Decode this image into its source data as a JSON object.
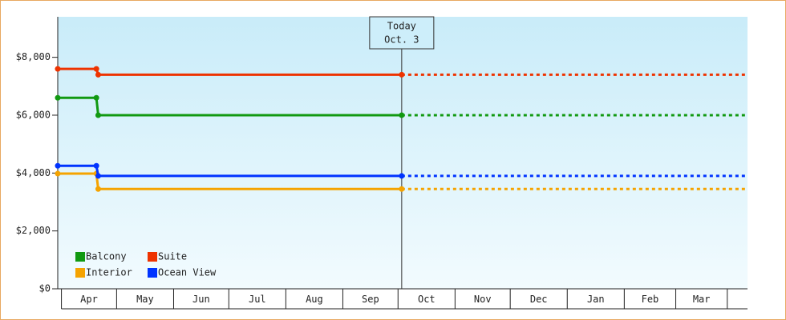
{
  "chart_data": {
    "type": "line",
    "xlim": [
      -2,
      373
    ],
    "xticks": [
      {
        "value": 0,
        "label": "Apr"
      },
      {
        "value": 30,
        "label": "May"
      },
      {
        "value": 61,
        "label": "Jun"
      },
      {
        "value": 91,
        "label": "Jul"
      },
      {
        "value": 122,
        "label": "Aug"
      },
      {
        "value": 153,
        "label": "Sep"
      },
      {
        "value": 183,
        "label": "Oct"
      },
      {
        "value": 214,
        "label": "Nov"
      },
      {
        "value": 244,
        "label": "Dec"
      },
      {
        "value": 275,
        "label": "Jan"
      },
      {
        "value": 306,
        "label": "Feb"
      },
      {
        "value": 334,
        "label": "Mar"
      }
    ],
    "ylim": [
      0,
      9400
    ],
    "yticks": [
      {
        "value": 0,
        "label": "$0"
      },
      {
        "value": 2000,
        "label": "$2,000"
      },
      {
        "value": 4000,
        "label": "$4,000"
      },
      {
        "value": 6000,
        "label": "$6,000"
      },
      {
        "value": 8000,
        "label": "$8,000"
      }
    ],
    "x": [
      -2,
      19,
      20,
      185
    ],
    "series": [
      {
        "name": "Balcony",
        "color": "#119911",
        "values": [
          6600,
          6600,
          6000,
          6000
        ]
      },
      {
        "name": "Suite",
        "color": "#ee3300",
        "values": [
          7600,
          7600,
          7400,
          7400
        ]
      },
      {
        "name": "Interior",
        "color": "#f5a300",
        "values": [
          3980,
          3980,
          3450,
          3450
        ]
      },
      {
        "name": "Ocean View",
        "color": "#0033ff",
        "values": [
          4250,
          4250,
          3900,
          3900
        ]
      }
    ],
    "annotation": {
      "x": 185,
      "lines": [
        "Today",
        "Oct. 3"
      ]
    },
    "legend": "lower left"
  }
}
